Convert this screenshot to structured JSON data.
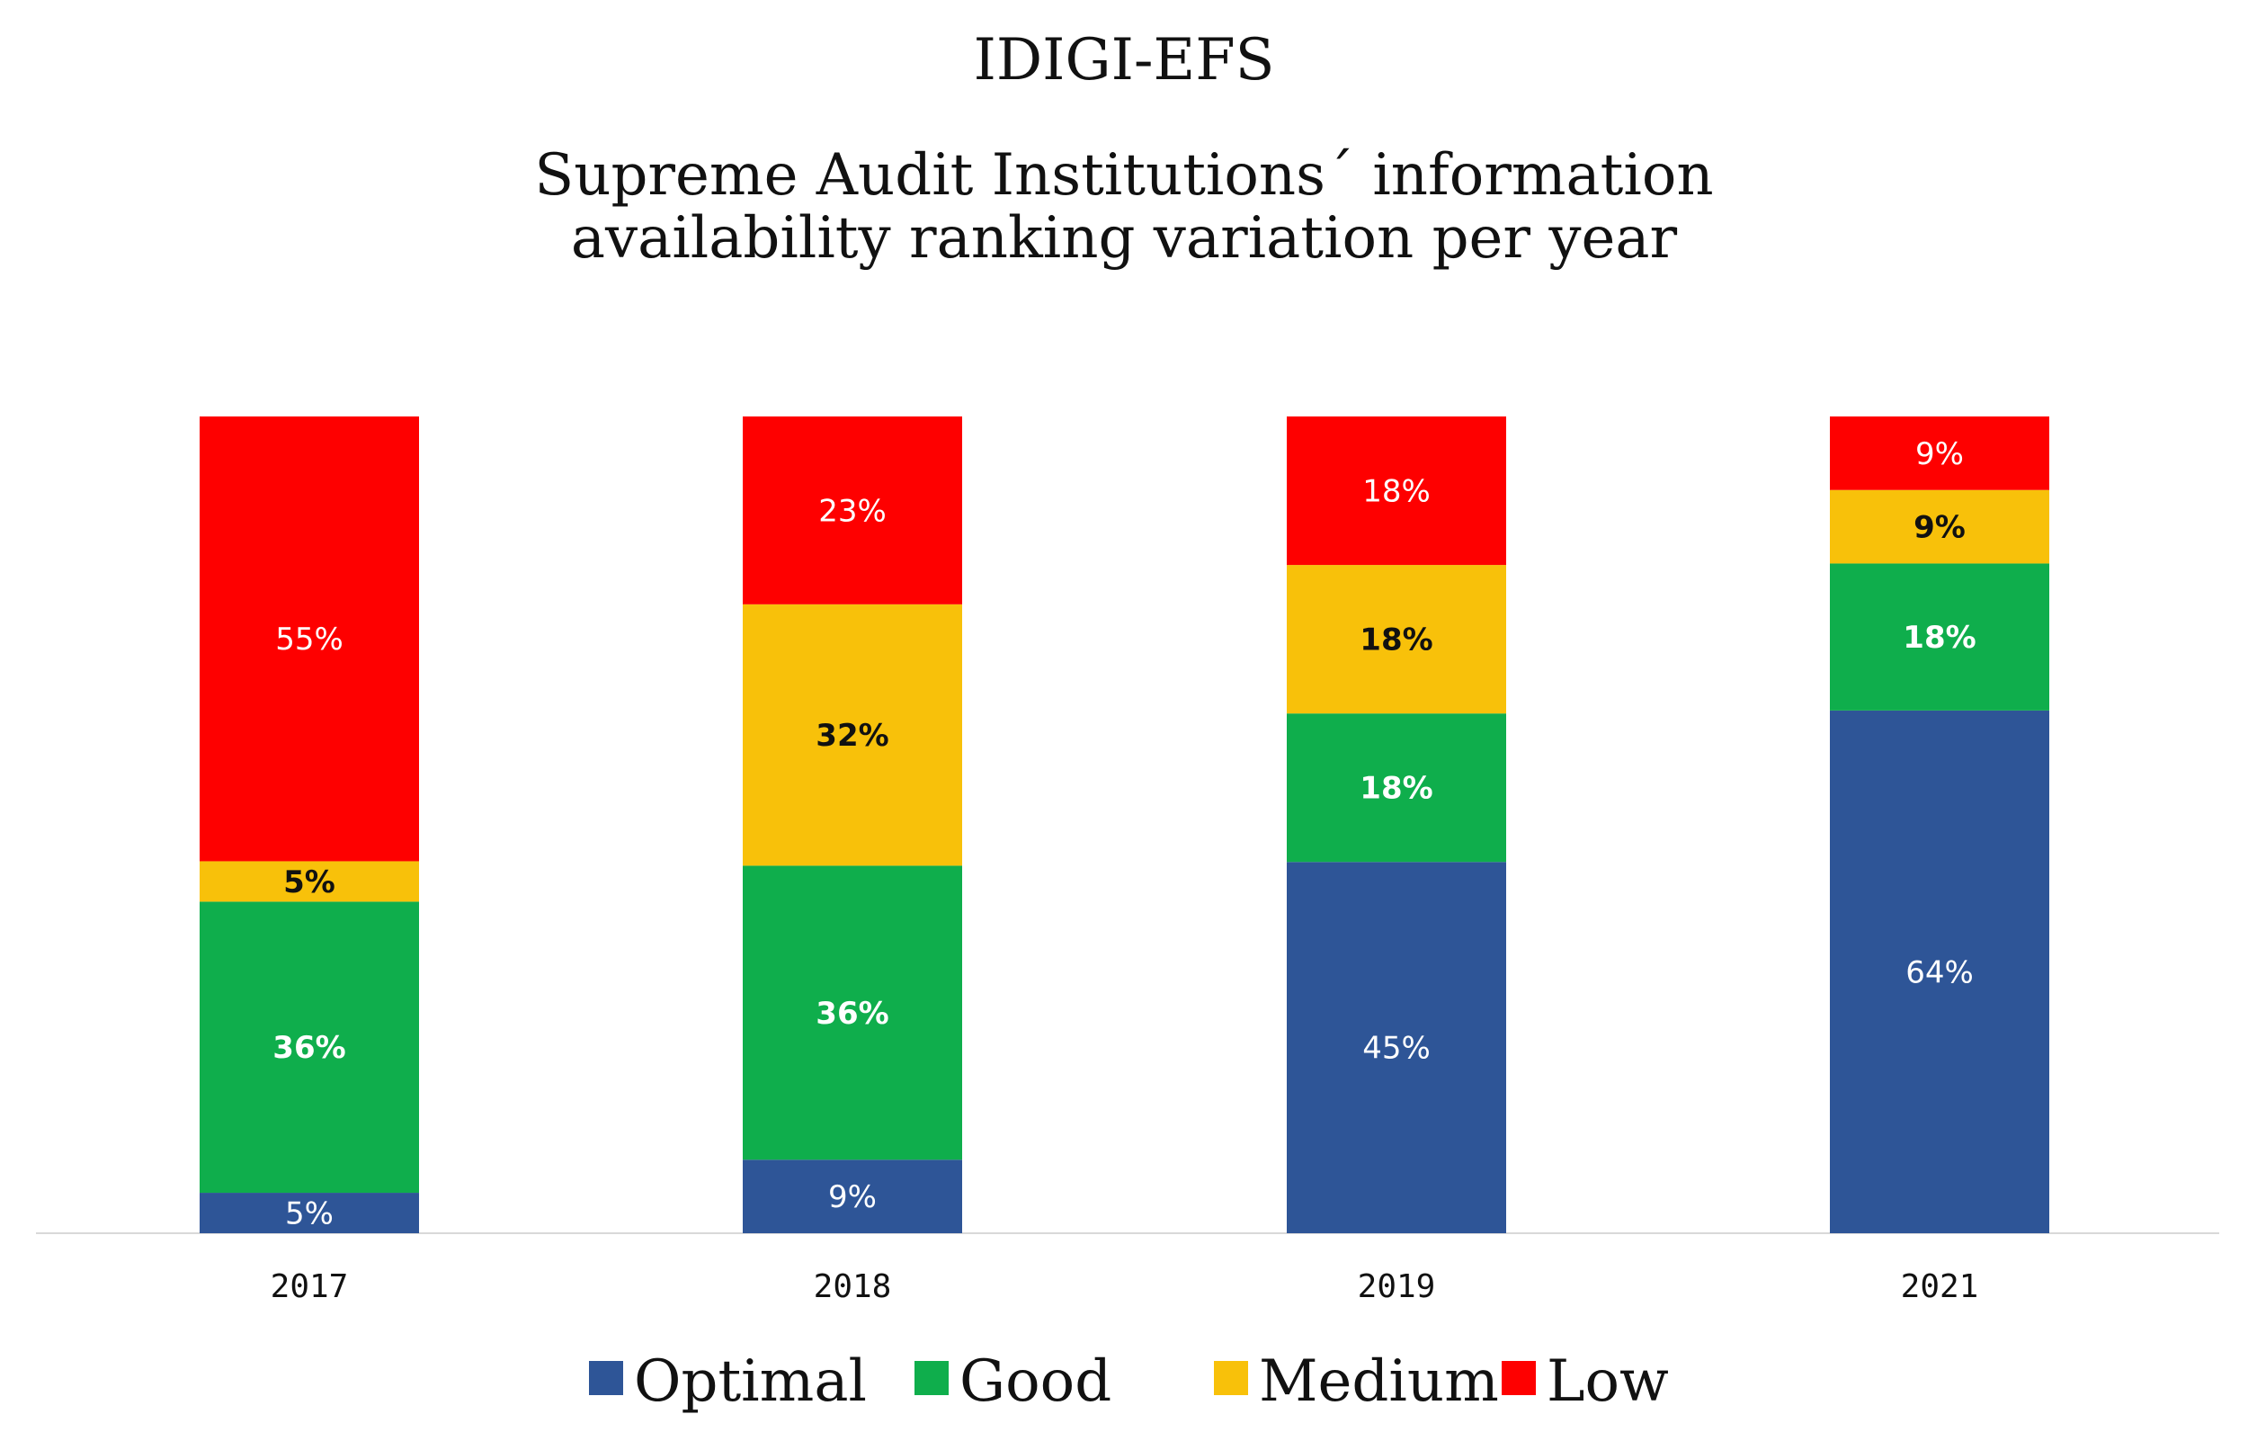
{
  "chart_data": {
    "type": "bar",
    "stacked": true,
    "title": "IDIGI-EFS",
    "subtitle_lines": [
      "Supreme Audit Institutions´ information",
      "availability ranking variation per year"
    ],
    "categories": [
      "2017",
      "2018",
      "2019",
      "2021"
    ],
    "series": [
      {
        "name": "Optimal",
        "color": "#2E5597",
        "label_color": "#ffffff",
        "label_bold": false,
        "values": [
          5,
          9,
          45,
          64
        ],
        "labels": [
          "5%",
          "9%",
          "45%",
          "64%"
        ]
      },
      {
        "name": "Good",
        "color": "#0FAE4C",
        "label_color": "#ffffff",
        "label_bold": true,
        "values": [
          36,
          36,
          18,
          18
        ],
        "labels": [
          "36%",
          "36%",
          "18%",
          "18%"
        ]
      },
      {
        "name": "Medium",
        "color": "#F8C10A",
        "label_color": "#111111",
        "label_bold": true,
        "values": [
          5,
          32,
          18,
          9
        ],
        "labels": [
          "5%",
          "32%",
          "18%",
          "9%"
        ]
      },
      {
        "name": "Low",
        "color": "#FE0000",
        "label_color": "#ffffff",
        "label_bold": false,
        "values": [
          55,
          23,
          18,
          9
        ],
        "labels": [
          "55%",
          "23%",
          "18%",
          "9%"
        ]
      }
    ],
    "ylim": [
      0,
      100
    ],
    "grid": false,
    "legend_position": "bottom"
  }
}
